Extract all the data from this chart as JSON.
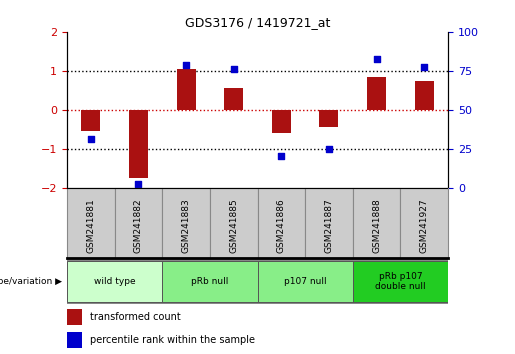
{
  "title": "GDS3176 / 1419721_at",
  "samples": [
    "GSM241881",
    "GSM241882",
    "GSM241883",
    "GSM241885",
    "GSM241886",
    "GSM241887",
    "GSM241888",
    "GSM241927"
  ],
  "bar_values": [
    -0.55,
    -1.75,
    1.05,
    0.55,
    -0.6,
    -0.45,
    0.85,
    0.75
  ],
  "dot_values": [
    -0.75,
    -1.9,
    1.15,
    1.05,
    -1.2,
    -1.0,
    1.3,
    1.1
  ],
  "bar_color": "#aa1111",
  "dot_color": "#0000cc",
  "ylim_left": [
    -2,
    2
  ],
  "ylim_right": [
    0,
    100
  ],
  "y_ticks_left": [
    -2,
    -1,
    0,
    1,
    2
  ],
  "y_ticks_right": [
    0,
    25,
    50,
    75,
    100
  ],
  "dotted_lines": [
    -1,
    0,
    1
  ],
  "zero_line_color": "#cc0000",
  "dotted_line_color": "#000000",
  "groups": [
    {
      "label": "wild type",
      "start": 0,
      "end": 2,
      "color": "#ccffcc"
    },
    {
      "label": "pRb null",
      "start": 2,
      "end": 4,
      "color": "#88ee88"
    },
    {
      "label": "p107 null",
      "start": 4,
      "end": 6,
      "color": "#88ee88"
    },
    {
      "label": "pRb p107\ndouble null",
      "start": 6,
      "end": 8,
      "color": "#22cc22"
    }
  ],
  "genotype_label": "genotype/variation",
  "legend_bar_label": "transformed count",
  "legend_dot_label": "percentile rank within the sample",
  "tick_label_color_left": "#cc0000",
  "tick_label_color_right": "#0000cc",
  "sample_box_color": "#cccccc",
  "sample_box_edge": "#888888"
}
